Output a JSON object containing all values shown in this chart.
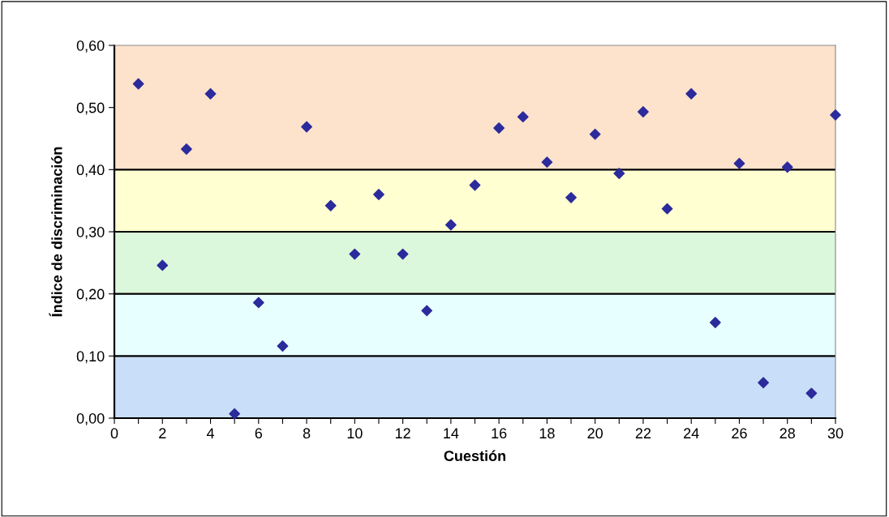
{
  "chart_data": {
    "type": "scatter",
    "xlabel": "Cuestión",
    "ylabel": "Índice de discriminación",
    "x": [
      1,
      2,
      3,
      4,
      5,
      6,
      7,
      8,
      9,
      10,
      11,
      12,
      13,
      14,
      15,
      16,
      17,
      18,
      19,
      20,
      21,
      22,
      23,
      24,
      25,
      26,
      27,
      28,
      29,
      30
    ],
    "series": [
      {
        "color": "#2b2b9c",
        "values": [
          0.538,
          0.246,
          0.433,
          0.522,
          0.007,
          0.186,
          0.116,
          0.469,
          0.342,
          0.264,
          0.36,
          0.264,
          0.173,
          0.311,
          0.375,
          0.467,
          0.485,
          0.412,
          0.355,
          0.457,
          0.394,
          0.493,
          0.337,
          0.522,
          0.154,
          0.41,
          0.057,
          0.404,
          0.04,
          0.488
        ]
      }
    ],
    "marker": "diamond",
    "grid": false,
    "xlim": [
      0,
      30
    ],
    "xticks": [
      0,
      {
        "value": 1,
        "label": null
      },
      2,
      {
        "value": 3,
        "label": null
      },
      4,
      {
        "value": 5,
        "label": null
      },
      6,
      {
        "value": 7,
        "label": null
      },
      8,
      {
        "value": 9,
        "label": null
      },
      10,
      {
        "value": 11,
        "label": null
      },
      12,
      {
        "value": 13,
        "label": null
      },
      14,
      {
        "value": 15,
        "label": null
      },
      16,
      {
        "value": 17,
        "label": null
      },
      18,
      {
        "value": 19,
        "label": null
      },
      20,
      {
        "value": 21,
        "label": null
      },
      22,
      {
        "value": 23,
        "label": null
      },
      24,
      {
        "value": 25,
        "label": null
      },
      26,
      {
        "value": 27,
        "label": null
      },
      28,
      {
        "value": 29,
        "label": null
      },
      30
    ],
    "ylim": [
      0,
      0.6
    ],
    "yticks": [
      {
        "value": 0,
        "label": "0,00"
      },
      {
        "value": 0.1,
        "label": "0,10"
      },
      {
        "value": 0.2,
        "label": "0,20"
      },
      {
        "value": 0.3,
        "label": "0,30"
      },
      {
        "value": 0.4,
        "label": "0,40"
      },
      {
        "value": 0.5,
        "label": "0,50"
      },
      {
        "value": 0.6,
        "label": "0,60"
      }
    ],
    "bands": [
      {
        "axis": "y",
        "from": 0,
        "to": 0.1,
        "color": "#c9def8"
      },
      {
        "axis": "y",
        "from": 0.1,
        "to": 0.2,
        "color": "#e8ffff"
      },
      {
        "axis": "y",
        "from": 0.2,
        "to": 0.3,
        "color": "#dcf8dc"
      },
      {
        "axis": "y",
        "from": 0.3,
        "to": 0.4,
        "color": "#ffffd2"
      },
      {
        "axis": "y",
        "from": 0.4,
        "to": 0.6,
        "color": "#fde2cc"
      }
    ],
    "ref_lines": [
      {
        "axis": "y",
        "value": 0.1,
        "color": "#000000"
      },
      {
        "axis": "y",
        "value": 0.2,
        "color": "#000000"
      },
      {
        "axis": "y",
        "value": 0.3,
        "color": "#000000"
      },
      {
        "axis": "y",
        "value": 0.4,
        "color": "#000000"
      }
    ]
  }
}
